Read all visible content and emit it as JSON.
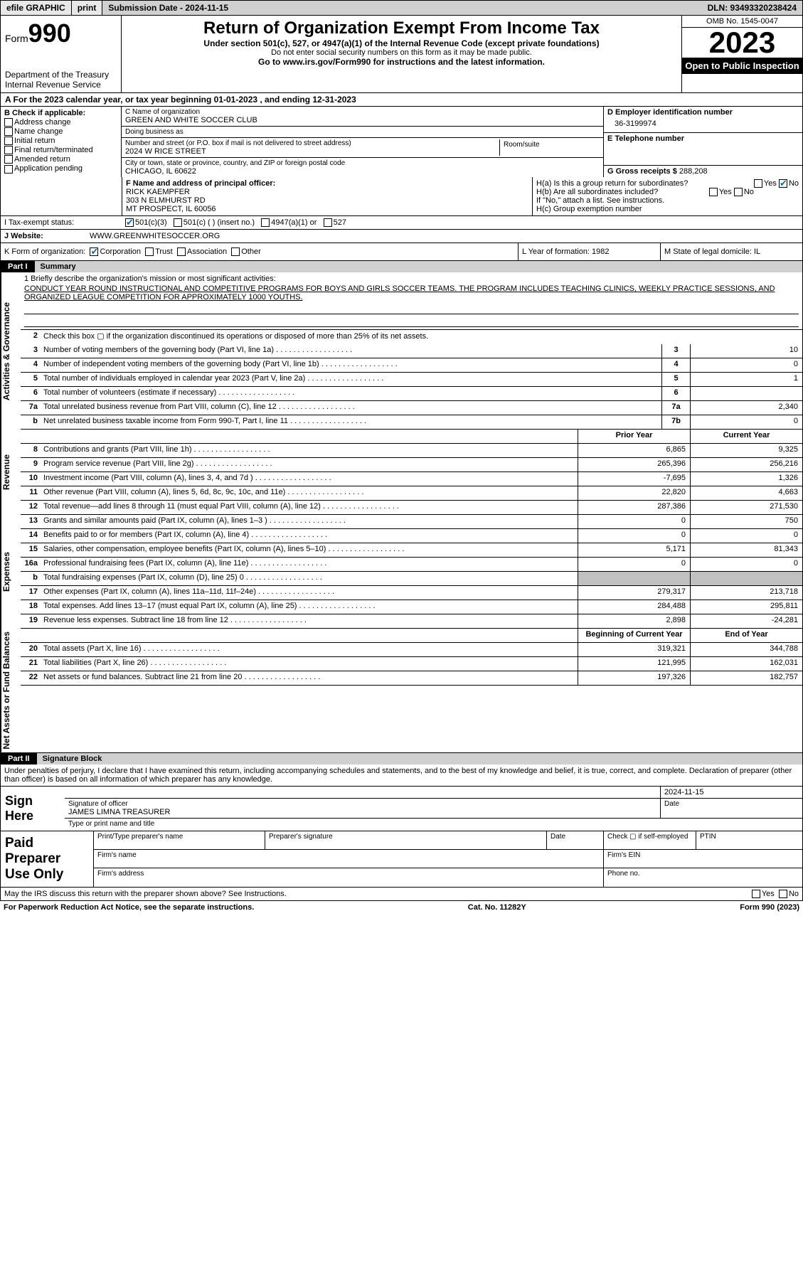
{
  "topbar": {
    "efile": "efile GRAPHIC",
    "print": "print",
    "submission": "Submission Date - 2024-11-15",
    "dln": "DLN: 93493320238424"
  },
  "header": {
    "form_word": "Form",
    "form_num": "990",
    "title": "Return of Organization Exempt From Income Tax",
    "sub": "Under section 501(c), 527, or 4947(a)(1) of the Internal Revenue Code (except private foundations)",
    "sub2": "Do not enter social security numbers on this form as it may be made public.",
    "sub3": "Go to www.irs.gov/Form990 for instructions and the latest information.",
    "dept": "Department of the Treasury Internal Revenue Service",
    "omb": "OMB No. 1545-0047",
    "year": "2023",
    "open_pub": "Open to Public Inspection"
  },
  "rowA": "A For the 2023 calendar year, or tax year beginning 01-01-2023    , and ending 12-31-2023",
  "colB": {
    "title": "B Check if applicable:",
    "items": [
      "Address change",
      "Name change",
      "Initial return",
      "Final return/terminated",
      "Amended return",
      "Application pending"
    ]
  },
  "colC": {
    "name_label": "C Name of organization",
    "name": "GREEN AND WHITE SOCCER CLUB",
    "dba_label": "Doing business as",
    "dba": "",
    "addr_label": "Number and street (or P.O. box if mail is not delivered to street address)",
    "room_label": "Room/suite",
    "addr": "2024 W RICE STREET",
    "city_label": "City or town, state or province, country, and ZIP or foreign postal code",
    "city": "CHICAGO, IL  60622"
  },
  "colD": {
    "ein_label": "D Employer identification number",
    "ein": "36-3199974",
    "tel_label": "E Telephone number",
    "tel": "",
    "gross_label": "G Gross receipts $",
    "gross": "288,208"
  },
  "officer": {
    "label": "F  Name and address of principal officer:",
    "name": "RICK KAEMPFER",
    "addr1": "303 N ELMHURST RD",
    "addr2": "MT PROSPECT, IL  60056"
  },
  "hbox": {
    "ha": "H(a)  Is this a group return for subordinates?",
    "ha_yes": "Yes",
    "ha_no": "No",
    "hb": "H(b)  Are all subordinates included?",
    "hb_note": "If \"No,\" attach a list. See instructions.",
    "hc": "H(c)  Group exemption number"
  },
  "status": {
    "label": "I   Tax-exempt status:",
    "c3": "501(c)(3)",
    "c": "501(c) (  ) (insert no.)",
    "a1": "4947(a)(1) or",
    "s527": "527",
    "web_label": "J   Website:",
    "web": "WWW.GREENWHITESOCCER.ORG"
  },
  "korg": {
    "k": "K Form of organization:",
    "corp": "Corporation",
    "trust": "Trust",
    "assoc": "Association",
    "other": "Other",
    "l": "L Year of formation: 1982",
    "m": "M State of legal domicile: IL"
  },
  "part1": {
    "num": "Part I",
    "title": "Summary"
  },
  "mission": {
    "label": "1   Briefly describe the organization's mission or most significant activities:",
    "text": "CONDUCT YEAR ROUND INSTRUCTIONAL AND COMPETITIVE PROGRAMS FOR BOYS AND GIRLS SOCCER TEAMS. THE PROGRAM INCLUDES TEACHING CLINICS, WEEKLY PRACTICE SESSIONS, AND ORGANIZED LEAGUE COMPETITION FOR APPROXIMATELY 1000 YOUTHS."
  },
  "line2": "Check this box ▢ if the organization discontinued its operations or disposed of more than 25% of its net assets.",
  "vtabs": {
    "gov": "Activities & Governance",
    "rev": "Revenue",
    "exp": "Expenses",
    "net": "Net Assets or Fund Balances"
  },
  "gov_lines": [
    {
      "n": "3",
      "d": "Number of voting members of the governing body (Part VI, line 1a)",
      "b": "3",
      "v": "10"
    },
    {
      "n": "4",
      "d": "Number of independent voting members of the governing body (Part VI, line 1b)",
      "b": "4",
      "v": "0"
    },
    {
      "n": "5",
      "d": "Total number of individuals employed in calendar year 2023 (Part V, line 2a)",
      "b": "5",
      "v": "1"
    },
    {
      "n": "6",
      "d": "Total number of volunteers (estimate if necessary)",
      "b": "6",
      "v": ""
    },
    {
      "n": "7a",
      "d": "Total unrelated business revenue from Part VIII, column (C), line 12",
      "b": "7a",
      "v": "2,340"
    },
    {
      "n": "b",
      "d": "Net unrelated business taxable income from Form 990-T, Part I, line 11",
      "b": "7b",
      "v": "0"
    }
  ],
  "yr_hdr": {
    "prior": "Prior Year",
    "current": "Current Year"
  },
  "rev_lines": [
    {
      "n": "8",
      "d": "Contributions and grants (Part VIII, line 1h)",
      "p": "6,865",
      "c": "9,325"
    },
    {
      "n": "9",
      "d": "Program service revenue (Part VIII, line 2g)",
      "p": "265,396",
      "c": "256,216"
    },
    {
      "n": "10",
      "d": "Investment income (Part VIII, column (A), lines 3, 4, and 7d )",
      "p": "-7,695",
      "c": "1,326"
    },
    {
      "n": "11",
      "d": "Other revenue (Part VIII, column (A), lines 5, 6d, 8c, 9c, 10c, and 11e)",
      "p": "22,820",
      "c": "4,663"
    },
    {
      "n": "12",
      "d": "Total revenue—add lines 8 through 11 (must equal Part VIII, column (A), line 12)",
      "p": "287,386",
      "c": "271,530"
    }
  ],
  "exp_lines": [
    {
      "n": "13",
      "d": "Grants and similar amounts paid (Part IX, column (A), lines 1–3 )",
      "p": "0",
      "c": "750"
    },
    {
      "n": "14",
      "d": "Benefits paid to or for members (Part IX, column (A), line 4)",
      "p": "0",
      "c": "0"
    },
    {
      "n": "15",
      "d": "Salaries, other compensation, employee benefits (Part IX, column (A), lines 5–10)",
      "p": "5,171",
      "c": "81,343"
    },
    {
      "n": "16a",
      "d": "Professional fundraising fees (Part IX, column (A), line 11e)",
      "p": "0",
      "c": "0"
    },
    {
      "n": "b",
      "d": "Total fundraising expenses (Part IX, column (D), line 25) 0",
      "p": "",
      "c": "",
      "shade": true
    },
    {
      "n": "17",
      "d": "Other expenses (Part IX, column (A), lines 11a–11d, 11f–24e)",
      "p": "279,317",
      "c": "213,718"
    },
    {
      "n": "18",
      "d": "Total expenses. Add lines 13–17 (must equal Part IX, column (A), line 25)",
      "p": "284,488",
      "c": "295,811"
    },
    {
      "n": "19",
      "d": "Revenue less expenses. Subtract line 18 from line 12",
      "p": "2,898",
      "c": "-24,281"
    }
  ],
  "net_hdr": {
    "begin": "Beginning of Current Year",
    "end": "End of Year"
  },
  "net_lines": [
    {
      "n": "20",
      "d": "Total assets (Part X, line 16)",
      "p": "319,321",
      "c": "344,788"
    },
    {
      "n": "21",
      "d": "Total liabilities (Part X, line 26)",
      "p": "121,995",
      "c": "162,031"
    },
    {
      "n": "22",
      "d": "Net assets or fund balances. Subtract line 21 from line 20",
      "p": "197,326",
      "c": "182,757"
    }
  ],
  "part2": {
    "num": "Part II",
    "title": "Signature Block"
  },
  "sig_intro": "Under penalties of perjury, I declare that I have examined this return, including accompanying schedules and statements, and to the best of my knowledge and belief, it is true, correct, and complete. Declaration of preparer (other than officer) is based on all information of which preparer has any knowledge.",
  "sign": {
    "label": "Sign Here",
    "date": "2024-11-15",
    "sig_label": "Signature of officer",
    "name": "JAMES LIMNA  TREASURER",
    "name_label": "Type or print name and title",
    "date_label": "Date"
  },
  "prep": {
    "label": "Paid Preparer Use Only",
    "c1": "Print/Type preparer's name",
    "c2": "Preparer's signature",
    "c3": "Date",
    "c4": "Check ▢ if self-employed",
    "c5": "PTIN",
    "firm": "Firm's name",
    "ein": "Firm's EIN",
    "addr": "Firm's address",
    "phone": "Phone no."
  },
  "discuss": {
    "text": "May the IRS discuss this return with the preparer shown above? See Instructions.",
    "yes": "Yes",
    "no": "No"
  },
  "footer": {
    "left": "For Paperwork Reduction Act Notice, see the separate instructions.",
    "mid": "Cat. No. 11282Y",
    "right": "Form 990 (2023)"
  }
}
